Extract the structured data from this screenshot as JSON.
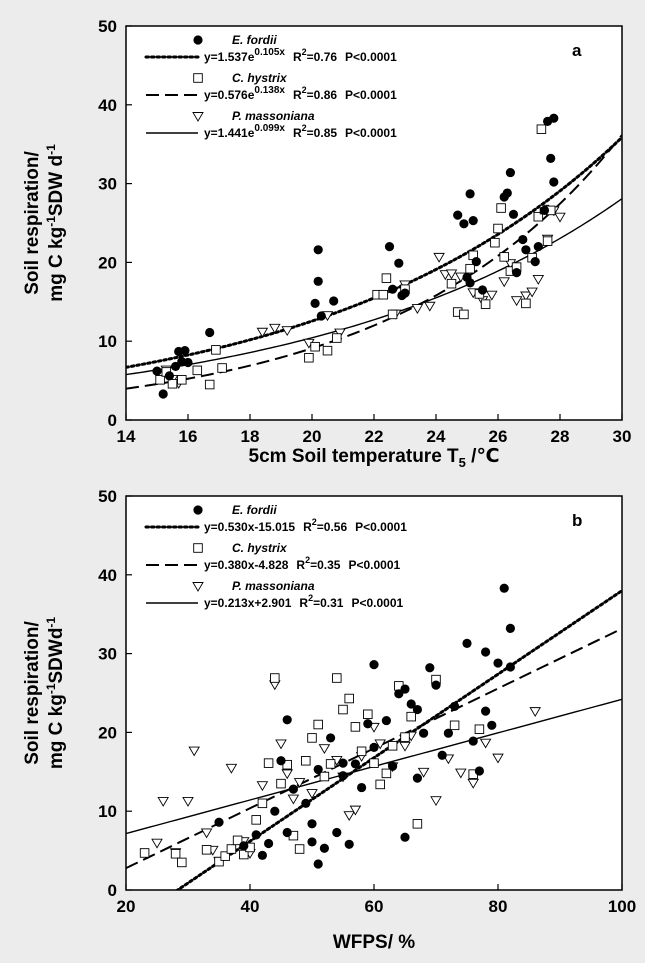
{
  "chart_data": [
    {
      "type": "scatter",
      "panel_label": "a",
      "xlabel": "5cm Soil temperature T",
      "xlabel_sub": "5",
      "xlabel_unit": " /℃",
      "ylabel_line1": "Soil respiration/",
      "ylabel_line2_pre": "mg C kg",
      "ylabel_line2_sup": "-1",
      "ylabel_line2_post": "SDW d",
      "ylabel_line2_sup2": "-1",
      "xlim": [
        14,
        30
      ],
      "ylim": [
        0,
        50
      ],
      "xticks": [
        "14",
        "16",
        "18",
        "20",
        "22",
        "24",
        "26",
        "28",
        "30"
      ],
      "yticks": [
        "0",
        "10",
        "20",
        "30",
        "40",
        "50"
      ],
      "series": [
        {
          "name": "E. fordii",
          "marker": "filled-circle",
          "line": "dotted",
          "fit": {
            "type": "exp",
            "a": 1.537,
            "b": 0.105
          },
          "eq_pre": "y=1.537e",
          "eq_sup": "0.105x",
          "r2_label": "R",
          "r2_sup": "2",
          "r2_value": "=0.76",
          "p": "P<0.0001",
          "points": [
            [
              15.0,
              6.2
            ],
            [
              15.2,
              3.3
            ],
            [
              15.4,
              5.6
            ],
            [
              15.6,
              6.8
            ],
            [
              15.7,
              8.7
            ],
            [
              15.8,
              7.4
            ],
            [
              15.9,
              8.8
            ],
            [
              16.0,
              7.3
            ],
            [
              16.7,
              11.1
            ],
            [
              20.1,
              14.8
            ],
            [
              20.2,
              21.6
            ],
            [
              20.2,
              17.6
            ],
            [
              20.3,
              13.2
            ],
            [
              20.7,
              15.1
            ],
            [
              22.5,
              22.0
            ],
            [
              22.6,
              16.6
            ],
            [
              22.8,
              19.9
            ],
            [
              22.9,
              15.8
            ],
            [
              23.0,
              16.1
            ],
            [
              24.7,
              26.0
            ],
            [
              24.9,
              24.9
            ],
            [
              25.0,
              18.1
            ],
            [
              25.1,
              28.7
            ],
            [
              25.2,
              25.3
            ],
            [
              25.3,
              20.1
            ],
            [
              25.1,
              17.4
            ],
            [
              25.5,
              16.5
            ],
            [
              26.2,
              28.3
            ],
            [
              26.3,
              28.8
            ],
            [
              26.4,
              31.4
            ],
            [
              26.5,
              26.1
            ],
            [
              26.6,
              18.7
            ],
            [
              26.8,
              22.9
            ],
            [
              26.9,
              21.6
            ],
            [
              27.2,
              20.1
            ],
            [
              27.3,
              22.0
            ],
            [
              27.5,
              26.6
            ],
            [
              27.6,
              37.9
            ],
            [
              27.7,
              33.2
            ],
            [
              27.8,
              38.3
            ],
            [
              27.8,
              30.2
            ]
          ]
        },
        {
          "name": "C. hystrix",
          "marker": "open-square",
          "line": "dashed",
          "fit": {
            "type": "exp",
            "a": 0.576,
            "b": 0.138
          },
          "eq_pre": "y=0.576e",
          "eq_sup": "0.138x",
          "r2_label": "R",
          "r2_sup": "2",
          "r2_value": "=0.86",
          "p": "P<0.0001",
          "points": [
            [
              15.1,
              5.1
            ],
            [
              15.3,
              6.1
            ],
            [
              15.5,
              4.6
            ],
            [
              15.8,
              5.1
            ],
            [
              16.3,
              6.3
            ],
            [
              16.7,
              4.5
            ],
            [
              16.9,
              8.9
            ],
            [
              17.1,
              6.6
            ],
            [
              19.9,
              7.9
            ],
            [
              20.1,
              9.3
            ],
            [
              20.5,
              8.8
            ],
            [
              20.8,
              10.4
            ],
            [
              22.1,
              15.9
            ],
            [
              22.3,
              15.9
            ],
            [
              22.4,
              18.0
            ],
            [
              22.6,
              13.4
            ],
            [
              23.0,
              16.6
            ],
            [
              24.5,
              17.3
            ],
            [
              24.7,
              13.7
            ],
            [
              24.9,
              13.4
            ],
            [
              25.1,
              19.2
            ],
            [
              25.2,
              20.9
            ],
            [
              25.4,
              16.0
            ],
            [
              25.6,
              14.7
            ],
            [
              25.9,
              22.5
            ],
            [
              26.0,
              24.3
            ],
            [
              26.1,
              26.9
            ],
            [
              26.2,
              20.7
            ],
            [
              26.4,
              18.9
            ],
            [
              26.6,
              19.4
            ],
            [
              26.9,
              14.8
            ],
            [
              27.1,
              20.6
            ],
            [
              27.3,
              25.8
            ],
            [
              27.4,
              36.9
            ],
            [
              27.5,
              26.7
            ],
            [
              27.6,
              22.7
            ],
            [
              27.7,
              26.6
            ]
          ]
        },
        {
          "name": "P. massoniana",
          "marker": "open-triangle-down",
          "line": "solid",
          "fit": {
            "type": "exp",
            "a": 1.441,
            "b": 0.099
          },
          "eq_pre": "y=1.441e",
          "eq_sup": "0.099x",
          "r2_label": "R",
          "r2_sup": "2",
          "r2_value": "=0.85",
          "p": "P<0.0001",
          "points": [
            [
              15.1,
              5.7
            ],
            [
              15.3,
              6.4
            ],
            [
              15.5,
              5.2
            ],
            [
              15.7,
              4.7
            ],
            [
              18.4,
              11.2
            ],
            [
              18.8,
              11.7
            ],
            [
              19.2,
              11.4
            ],
            [
              19.9,
              9.8
            ],
            [
              20.5,
              13.3
            ],
            [
              20.9,
              11.1
            ],
            [
              22.7,
              13.5
            ],
            [
              23.0,
              17.2
            ],
            [
              23.4,
              14.2
            ],
            [
              23.8,
              14.5
            ],
            [
              24.1,
              20.7
            ],
            [
              24.3,
              18.5
            ],
            [
              24.5,
              18.6
            ],
            [
              24.8,
              18.2
            ],
            [
              25.2,
              16.2
            ],
            [
              25.5,
              15.2
            ],
            [
              25.8,
              15.9
            ],
            [
              26.2,
              17.6
            ],
            [
              26.4,
              19.9
            ],
            [
              26.6,
              15.2
            ],
            [
              26.9,
              15.8
            ],
            [
              27.1,
              16.3
            ],
            [
              27.3,
              17.9
            ],
            [
              27.6,
              23.0
            ],
            [
              27.8,
              26.6
            ],
            [
              28.0,
              25.8
            ]
          ]
        }
      ]
    },
    {
      "type": "scatter",
      "panel_label": "b",
      "xlabel": "WFPS/ %",
      "ylabel_line1": "Soil respiration/",
      "ylabel_line2_pre": "mg C kg",
      "ylabel_line2_sup": "-1",
      "ylabel_line2_post": "SDWd",
      "ylabel_line2_sup2": "-1",
      "xlim": [
        20,
        100
      ],
      "ylim": [
        0,
        50
      ],
      "xticks": [
        "20",
        "40",
        "60",
        "80",
        "100"
      ],
      "yticks": [
        "0",
        "10",
        "20",
        "30",
        "40",
        "50"
      ],
      "series": [
        {
          "name": "E. fordii",
          "marker": "filled-circle",
          "line": "dotted",
          "fit": {
            "type": "linear",
            "m": 0.53,
            "c": -15.015
          },
          "eq_text": "y=0.530x-15.015",
          "r2_label": "R",
          "r2_sup": "2",
          "r2_value": "=0.56",
          "p": "P<0.0001",
          "points": [
            [
              35,
              8.6
            ],
            [
              39,
              5.6
            ],
            [
              41,
              7.0
            ],
            [
              42,
              4.4
            ],
            [
              43,
              5.9
            ],
            [
              44,
              10.0
            ],
            [
              45,
              16.4
            ],
            [
              46,
              7.3
            ],
            [
              46,
              21.6
            ],
            [
              47,
              12.8
            ],
            [
              49,
              11.0
            ],
            [
              50,
              8.4
            ],
            [
              50,
              6.1
            ],
            [
              51,
              3.3
            ],
            [
              51,
              15.3
            ],
            [
              52,
              5.3
            ],
            [
              53,
              19.3
            ],
            [
              54,
              7.3
            ],
            [
              55,
              14.5
            ],
            [
              55,
              16.1
            ],
            [
              56,
              5.8
            ],
            [
              57,
              16.0
            ],
            [
              58,
              13.0
            ],
            [
              59,
              21.1
            ],
            [
              60,
              28.6
            ],
            [
              60,
              18.1
            ],
            [
              62,
              21.5
            ],
            [
              63,
              15.7
            ],
            [
              64,
              24.9
            ],
            [
              65,
              25.5
            ],
            [
              65,
              6.7
            ],
            [
              66,
              23.6
            ],
            [
              67,
              22.9
            ],
            [
              67,
              14.2
            ],
            [
              68,
              19.9
            ],
            [
              69,
              28.2
            ],
            [
              70,
              26.0
            ],
            [
              71,
              17.1
            ],
            [
              72,
              19.9
            ],
            [
              73,
              23.3
            ],
            [
              75,
              31.3
            ],
            [
              76,
              18.9
            ],
            [
              77,
              15.1
            ],
            [
              78,
              22.7
            ],
            [
              78,
              30.2
            ],
            [
              79,
              20.9
            ],
            [
              80,
              28.8
            ],
            [
              81,
              38.3
            ],
            [
              82,
              33.2
            ],
            [
              82,
              28.3
            ]
          ]
        },
        {
          "name": "C. hystrix",
          "marker": "open-square",
          "line": "dashed",
          "fit": {
            "type": "linear",
            "m": 0.38,
            "c": -4.828
          },
          "eq_text": "y=0.380x-4.828",
          "r2_label": "R",
          "r2_sup": "2",
          "r2_value": "=0.35",
          "p": "P<0.0001",
          "points": [
            [
              23,
              4.7
            ],
            [
              28,
              4.6
            ],
            [
              29,
              3.5
            ],
            [
              33,
              5.1
            ],
            [
              35,
              3.6
            ],
            [
              36,
              4.3
            ],
            [
              37,
              5.2
            ],
            [
              38,
              6.3
            ],
            [
              39,
              4.5
            ],
            [
              40,
              5.4
            ],
            [
              41,
              8.9
            ],
            [
              42,
              11.0
            ],
            [
              43,
              16.1
            ],
            [
              44,
              26.9
            ],
            [
              45,
              13.5
            ],
            [
              46,
              15.9
            ],
            [
              47,
              6.9
            ],
            [
              48,
              5.2
            ],
            [
              49,
              16.4
            ],
            [
              50,
              19.3
            ],
            [
              51,
              21.0
            ],
            [
              52,
              14.4
            ],
            [
              53,
              16.0
            ],
            [
              54,
              26.9
            ],
            [
              55,
              22.9
            ],
            [
              56,
              24.3
            ],
            [
              57,
              20.7
            ],
            [
              58,
              17.6
            ],
            [
              59,
              22.3
            ],
            [
              60,
              16.1
            ],
            [
              61,
              13.4
            ],
            [
              62,
              14.8
            ],
            [
              63,
              18.3
            ],
            [
              64,
              25.9
            ],
            [
              65,
              19.4
            ],
            [
              66,
              22.0
            ],
            [
              67,
              8.4
            ],
            [
              70,
              26.7
            ],
            [
              73,
              20.9
            ],
            [
              76,
              14.7
            ],
            [
              77,
              20.4
            ]
          ]
        },
        {
          "name": "P. massoniana",
          "marker": "open-triangle-down",
          "line": "solid",
          "fit": {
            "type": "linear",
            "m": 0.213,
            "c": 2.901
          },
          "eq_text": "y=0.213x+2.901",
          "r2_label": "R",
          "r2_sup": "2",
          "r2_value": "=0.31",
          "p": "P<0.0001",
          "points": [
            [
              25,
              6.0
            ],
            [
              26,
              11.3
            ],
            [
              28,
              4.8
            ],
            [
              30,
              11.3
            ],
            [
              31,
              17.7
            ],
            [
              33,
              7.3
            ],
            [
              34,
              5.1
            ],
            [
              35,
              3.7
            ],
            [
              37,
              15.5
            ],
            [
              39,
              6.2
            ],
            [
              40,
              4.7
            ],
            [
              42,
              13.3
            ],
            [
              44,
              26.1
            ],
            [
              45,
              18.6
            ],
            [
              46,
              14.8
            ],
            [
              47,
              11.6
            ],
            [
              48,
              13.7
            ],
            [
              50,
              12.3
            ],
            [
              52,
              18.0
            ],
            [
              54,
              16.5
            ],
            [
              55,
              14.4
            ],
            [
              56,
              9.5
            ],
            [
              57,
              10.2
            ],
            [
              58,
              17.0
            ],
            [
              60,
              20.7
            ],
            [
              61,
              18.6
            ],
            [
              63,
              15.7
            ],
            [
              65,
              18.3
            ],
            [
              66,
              19.6
            ],
            [
              68,
              15.0
            ],
            [
              70,
              11.4
            ],
            [
              72,
              16.7
            ],
            [
              74,
              14.9
            ],
            [
              76,
              13.6
            ],
            [
              78,
              18.7
            ],
            [
              80,
              16.8
            ],
            [
              86,
              22.7
            ]
          ]
        }
      ]
    }
  ]
}
